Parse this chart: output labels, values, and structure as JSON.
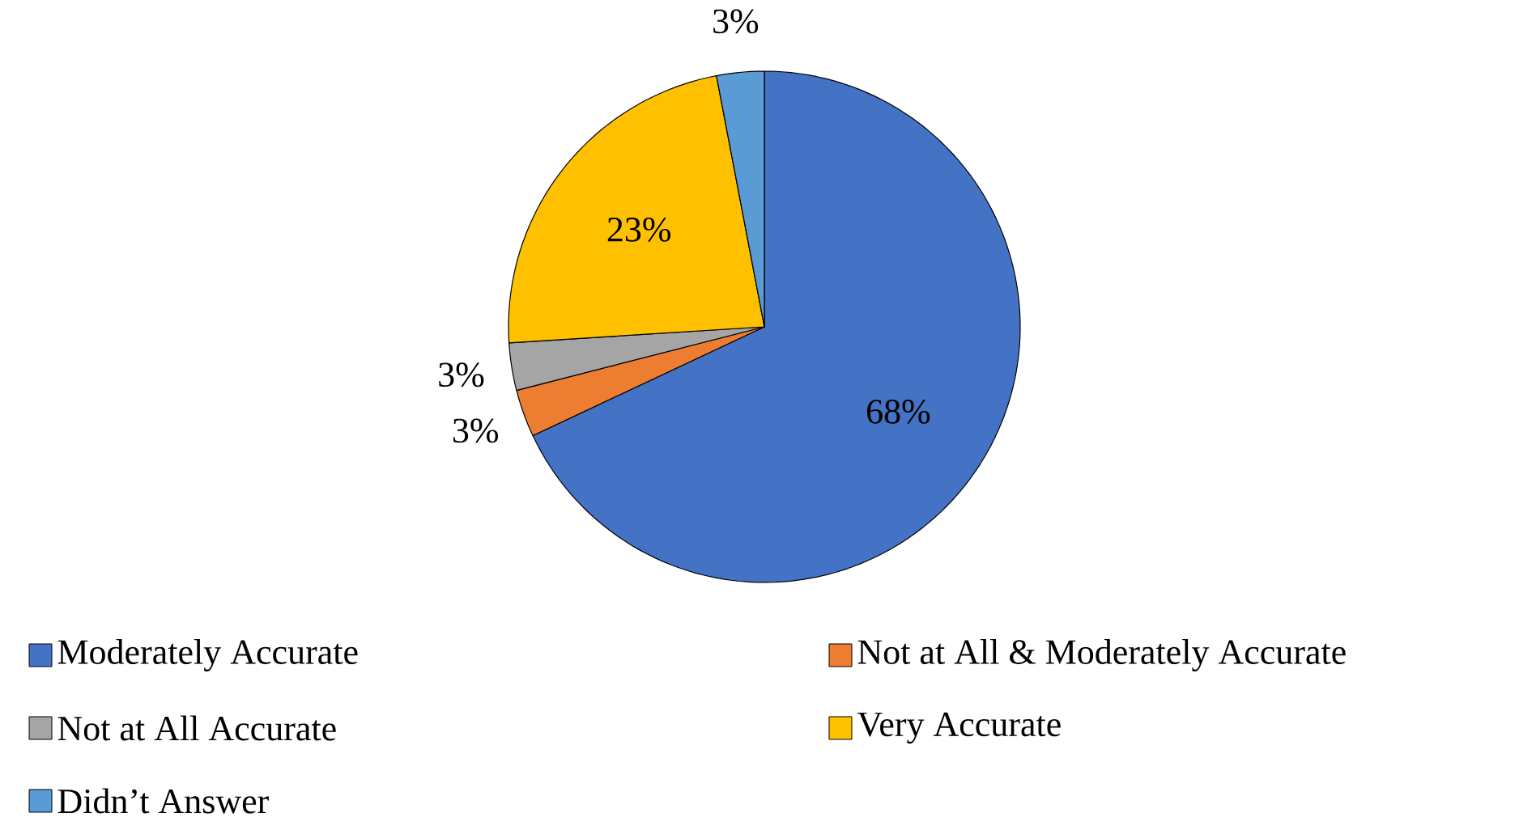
{
  "chart_data": {
    "type": "pie",
    "categories": [
      "Moderately Accurate",
      "Not at All & Moderately Accurate",
      "Not at All Accurate",
      "Very Accurate",
      "Didn’t Answer"
    ],
    "values": [
      68,
      3,
      3,
      23,
      3
    ],
    "colors": [
      "#4472c4",
      "#ed7d31",
      "#a5a5a5",
      "#ffc000",
      "#5b9bd5"
    ],
    "value_labels": [
      "68%",
      "3%",
      "3%",
      "23%",
      "3%"
    ],
    "legend": "bottom"
  }
}
